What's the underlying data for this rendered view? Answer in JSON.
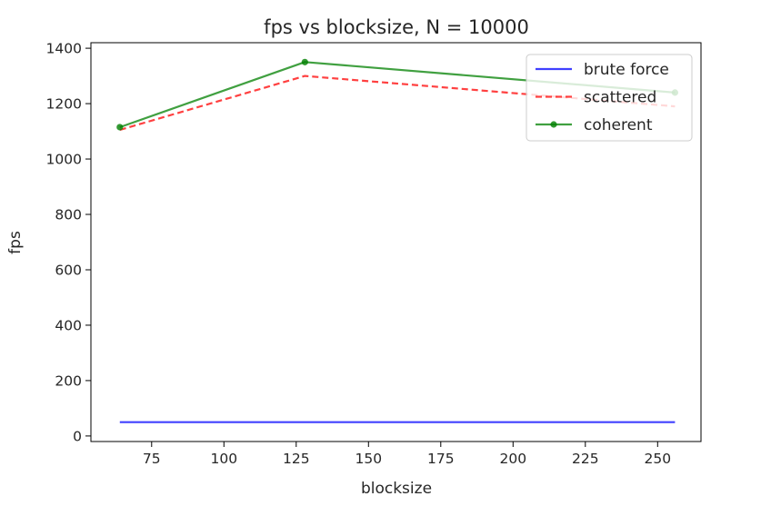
{
  "chart_data": {
    "type": "line",
    "title": "fps vs blocksize, N = 10000",
    "xlabel": "blocksize",
    "ylabel": "fps",
    "xlim": [
      54,
      265
    ],
    "ylim": [
      -20,
      1420
    ],
    "xticks": [
      75,
      100,
      125,
      150,
      175,
      200,
      225,
      250
    ],
    "yticks": [
      0,
      200,
      400,
      600,
      800,
      1000,
      1200,
      1400
    ],
    "x": [
      64,
      128,
      256
    ],
    "series": [
      {
        "name": "brute force",
        "values": [
          50,
          50,
          50
        ],
        "color": "#0000ff",
        "style": "solid",
        "marker": "none"
      },
      {
        "name": "scattered",
        "values": [
          1105,
          1300,
          1190
        ],
        "color": "#ff0000",
        "style": "dashed",
        "marker": "none"
      },
      {
        "name": "coherent",
        "values": [
          1115,
          1350,
          1240
        ],
        "color": "#008000",
        "style": "solid",
        "marker": "dot"
      }
    ],
    "grid": false,
    "legend_position": "top-right"
  }
}
